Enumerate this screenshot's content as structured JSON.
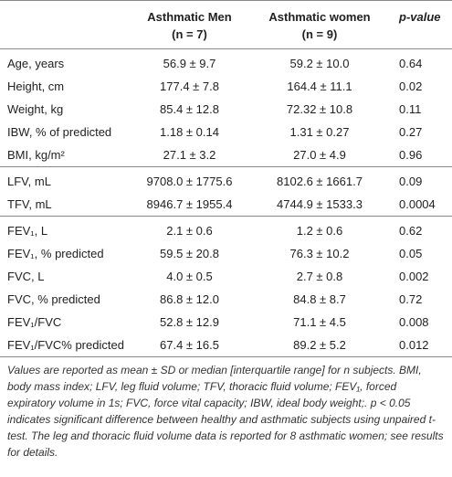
{
  "table": {
    "columns": [
      {
        "title": "Asthmatic Men",
        "n": "(n = 7)"
      },
      {
        "title": "Asthmatic women",
        "n": "(n = 9)"
      },
      {
        "title": "p-value"
      }
    ],
    "groups": [
      [
        [
          "Age, years",
          "56.9 ± 9.7",
          "59.2 ± 10.0",
          "0.64"
        ],
        [
          "Height, cm",
          "177.4 ± 7.8",
          "164.4 ± 11.1",
          "0.02"
        ],
        [
          "Weight, kg",
          "85.4 ± 12.8",
          "72.32 ± 10.8",
          "0.11"
        ],
        [
          "IBW, % of predicted",
          "1.18 ± 0.14",
          "1.31 ± 0.27",
          "0.27"
        ],
        [
          "BMI, kg/m²",
          "27.1 ± 3.2",
          "27.0 ± 4.9",
          "0.96"
        ]
      ],
      [
        [
          "LFV, mL",
          "9708.0 ± 1775.6",
          "8102.6 ± 1661.7",
          "0.09"
        ],
        [
          "TFV, mL",
          "8946.7 ± 1955.4",
          "4744.9 ± 1533.3",
          "0.0004"
        ]
      ],
      [
        [
          "FEV₁, L",
          "2.1 ± 0.6",
          "1.2 ± 0.6",
          "0.62"
        ],
        [
          "FEV₁, % predicted",
          "59.5 ± 20.8",
          "76.3 ± 10.2",
          "0.05"
        ],
        [
          "FVC, L",
          "4.0 ± 0.5",
          "2.7 ± 0.8",
          "0.002"
        ],
        [
          "FVC, % predicted",
          "86.8 ± 12.0",
          "84.8 ± 8.7",
          "0.72"
        ],
        [
          "FEV₁/FVC",
          "52.8 ± 12.9",
          "71.1 ± 4.5",
          "0.008"
        ],
        [
          "FEV₁/FVC% predicted",
          "67.4 ± 16.5",
          "89.2 ± 5.2",
          "0.012"
        ]
      ]
    ],
    "footnote": "Values are reported as mean ± SD or median [interquartile range] for n subjects. BMI, body mass index; LFV, leg fluid volume; TFV, thoracic fluid volume; FEV₁, forced expiratory volume in 1s; FVC, force vital capacity; IBW, ideal body weight;. p < 0.05 indicates significant difference between healthy and asthmatic subjects using unpaired t-test. The leg and thoracic fluid volume data is reported for 8 asthmatic women; see results for details."
  }
}
